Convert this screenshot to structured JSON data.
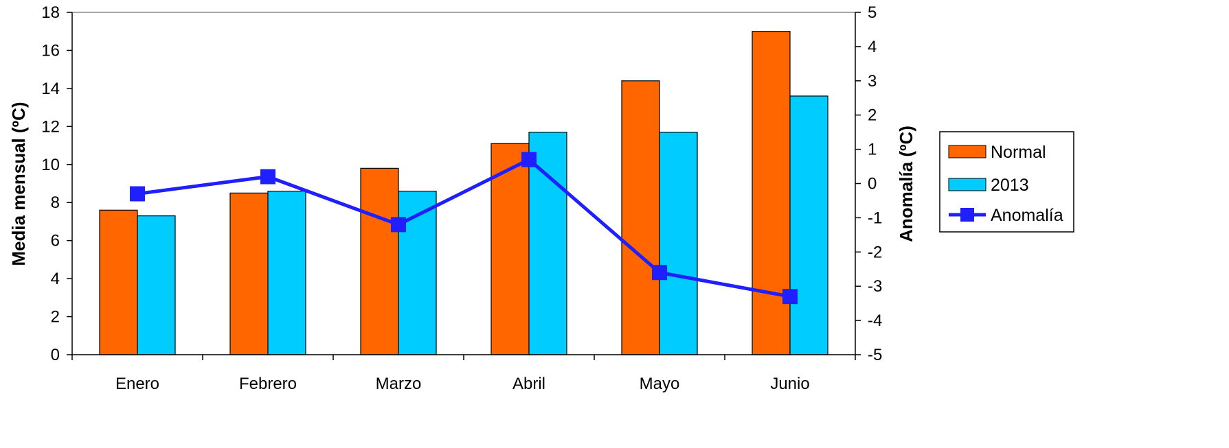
{
  "chart_data": {
    "type": "bar",
    "categories": [
      "Enero",
      "Febrero",
      "Marzo",
      "Abril",
      "Mayo",
      "Junio"
    ],
    "series": [
      {
        "name": "Normal",
        "type": "bar",
        "axis": "left",
        "color": "#FF6600",
        "values": [
          7.6,
          8.5,
          9.8,
          11.1,
          14.4,
          17.0
        ]
      },
      {
        "name": "2013",
        "type": "bar",
        "axis": "left",
        "color": "#00CCFF",
        "values": [
          7.3,
          8.6,
          8.6,
          11.7,
          11.7,
          13.6
        ]
      },
      {
        "name": "Anomalía",
        "type": "line",
        "axis": "right",
        "color": "#1F1FFF",
        "marker": "square",
        "values": [
          -0.3,
          0.2,
          -1.2,
          0.7,
          -2.6,
          -3.3
        ]
      }
    ],
    "ylabel": "Media mensual (ºC)",
    "y2label": "Anomalía (ºC)",
    "ylim": [
      0,
      18
    ],
    "y2lim": [
      -5,
      5
    ],
    "yticks": [
      "0",
      "2",
      "4",
      "6",
      "8",
      "10",
      "12",
      "14",
      "16",
      "18"
    ],
    "y2ticks": [
      "-5",
      "-4",
      "-3",
      "-2",
      "-1",
      "0",
      "1",
      "2",
      "3",
      "4",
      "5"
    ],
    "grid": false,
    "legend_position": "right"
  }
}
